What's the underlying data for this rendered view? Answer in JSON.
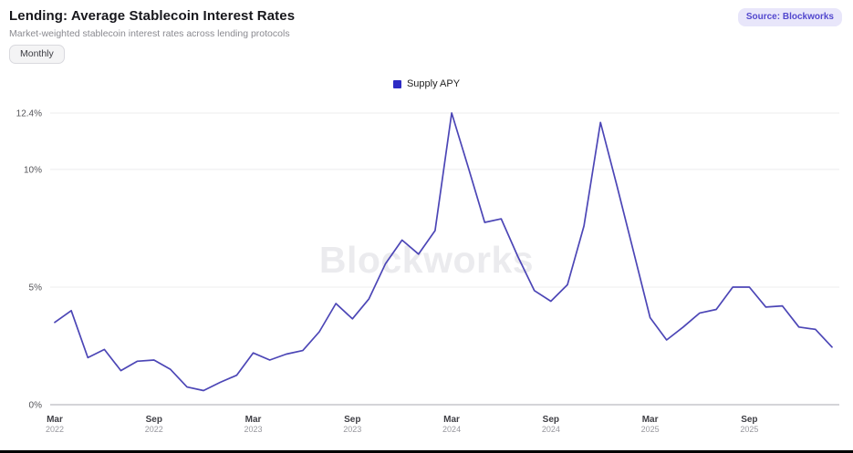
{
  "header": {
    "title": "Lending: Average Stablecoin Interest Rates",
    "subtitle": "Market-weighted stablecoin interest rates across lending protocols",
    "frequency_button": "Monthly",
    "source_badge": "Source: Blockworks"
  },
  "legend": {
    "label": "Supply APY",
    "color": "#2d2bc4"
  },
  "watermark": "Blockworks",
  "colors": {
    "line": "#4c46b6",
    "grid": "#ececee",
    "baseline": "#d4d4d8",
    "accent_badge_bg": "#e8e6fa",
    "accent_badge_text": "#5348ce"
  },
  "chart_data": {
    "type": "line",
    "title": "Lending: Average Stablecoin Interest Rates",
    "subtitle": "Market-weighted stablecoin interest rates across lending protocols",
    "xlabel": "",
    "ylabel": "Supply APY (%)",
    "ylim": [
      0,
      12.4
    ],
    "grid": true,
    "legend_position": "top-center",
    "y_ticks": [
      {
        "value": 0,
        "label": "0%"
      },
      {
        "value": 5,
        "label": "5%"
      },
      {
        "value": 10,
        "label": "10%"
      },
      {
        "value": 12.4,
        "label": "12.4%"
      }
    ],
    "x_ticks": [
      {
        "i": 0,
        "month": "Mar",
        "year": "2022"
      },
      {
        "i": 6,
        "month": "Sep",
        "year": "2022"
      },
      {
        "i": 12,
        "month": "Mar",
        "year": "2023"
      },
      {
        "i": 18,
        "month": "Sep",
        "year": "2023"
      },
      {
        "i": 24,
        "month": "Mar",
        "year": "2024"
      },
      {
        "i": 30,
        "month": "Sep",
        "year": "2024"
      },
      {
        "i": 36,
        "month": "Mar",
        "year": "2025"
      },
      {
        "i": 42,
        "month": "Sep",
        "year": "2025"
      }
    ],
    "categories": [
      "Mar 2022",
      "Apr 2022",
      "May 2022",
      "Jun 2022",
      "Jul 2022",
      "Aug 2022",
      "Sep 2022",
      "Oct 2022",
      "Nov 2022",
      "Dec 2022",
      "Jan 2023",
      "Feb 2023",
      "Mar 2023",
      "Apr 2023",
      "May 2023",
      "Jun 2023",
      "Jul 2023",
      "Aug 2023",
      "Sep 2023",
      "Oct 2023",
      "Nov 2023",
      "Dec 2023",
      "Jan 2024",
      "Feb 2024",
      "Mar 2024",
      "Apr 2024",
      "May 2024",
      "Jun 2024",
      "Jul 2024",
      "Aug 2024",
      "Sep 2024",
      "Oct 2024",
      "Nov 2024",
      "Dec 2024",
      "Jan 2025",
      "Feb 2025",
      "Mar 2025",
      "Apr 2025",
      "May 2025",
      "Jun 2025",
      "Jul 2025",
      "Aug 2025",
      "Sep 2025",
      "Oct 2025",
      "Nov 2025",
      "Dec 2025",
      "Jan 2026",
      "Feb 2026"
    ],
    "series": [
      {
        "name": "Supply APY",
        "values": [
          3.5,
          4.0,
          2.0,
          2.35,
          1.45,
          1.85,
          1.9,
          1.5,
          0.75,
          0.6,
          0.95,
          1.25,
          2.2,
          1.9,
          2.15,
          2.3,
          3.1,
          4.3,
          3.65,
          4.5,
          6.0,
          7.0,
          6.4,
          7.4,
          12.4,
          10.1,
          7.75,
          7.9,
          6.3,
          4.85,
          4.4,
          5.1,
          7.6,
          12.0,
          9.3,
          6.5,
          3.7,
          2.75,
          3.3,
          3.9,
          4.05,
          5.0,
          5.0,
          4.15,
          4.2,
          3.3,
          3.2,
          2.45
        ]
      }
    ]
  }
}
